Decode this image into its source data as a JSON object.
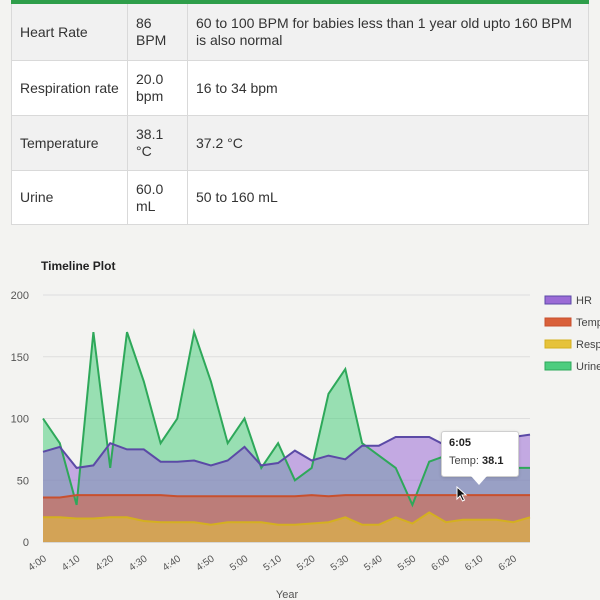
{
  "vitals": [
    {
      "name": "Heart Rate",
      "value": "86 BPM",
      "normal": "60 to 100 BPM for babies less than 1 year old upto 160 BPM is also normal"
    },
    {
      "name": "Respiration rate",
      "value": "20.0 bpm",
      "normal": "16 to 34 bpm"
    },
    {
      "name": "Temperature",
      "value": "38.1 °C",
      "normal": "37.2 °C"
    },
    {
      "name": "Urine",
      "value": "60.0 mL",
      "normal": "50 to 160 mL"
    }
  ],
  "chart_data": {
    "type": "area",
    "title": "Timeline Plot",
    "xlabel": "Year",
    "ylabel": "",
    "ylim": [
      0,
      200
    ],
    "y_ticks": [
      0,
      50,
      100,
      150,
      200
    ],
    "grid": true,
    "legend_position": "right",
    "x": [
      "4:00",
      "4:05",
      "4:10",
      "4:15",
      "4:20",
      "4:25",
      "4:30",
      "4:35",
      "4:40",
      "4:45",
      "4:50",
      "4:55",
      "5:00",
      "5:05",
      "5:10",
      "5:15",
      "5:20",
      "5:25",
      "5:30",
      "5:35",
      "5:40",
      "5:45",
      "5:50",
      "5:55",
      "6:00",
      "6:05",
      "6:10",
      "6:15",
      "6:20",
      "6:25"
    ],
    "x_tick_labels": [
      "4:00",
      "4:10",
      "4:20",
      "4:30",
      "4:40",
      "4:50",
      "5:00",
      "5:10",
      "5:20",
      "5:30",
      "5:40",
      "5:50",
      "6:00",
      "6:10",
      "6:20"
    ],
    "series": [
      {
        "name": "HR",
        "color": "#9b6bd6",
        "line_color": "#5b4aa6",
        "values": [
          73,
          77,
          60,
          62,
          80,
          75,
          75,
          65,
          65,
          66,
          62,
          66,
          77,
          62,
          64,
          74,
          66,
          70,
          67,
          78,
          78,
          85,
          85,
          85,
          78,
          85,
          85,
          85,
          85,
          87
        ]
      },
      {
        "name": "Temp",
        "color": "#d9603a",
        "line_color": "#c8502e",
        "values": [
          36,
          36,
          38,
          38,
          38,
          38,
          38,
          38,
          37,
          37,
          37,
          37,
          37,
          37,
          37,
          37,
          38,
          37,
          38,
          38,
          38,
          38,
          38,
          38,
          38,
          38,
          38,
          38,
          38,
          38
        ]
      },
      {
        "name": "Resp",
        "color": "#e6c23a",
        "line_color": "#d4b020",
        "values": [
          20,
          20,
          19,
          19,
          20,
          20,
          17,
          16,
          16,
          16,
          14,
          16,
          16,
          16,
          14,
          14,
          15,
          16,
          20,
          14,
          14,
          20,
          15,
          24,
          16,
          18,
          18,
          18,
          16,
          20
        ]
      },
      {
        "name": "Urine",
        "color": "#4ccd7e",
        "line_color": "#2ea85a",
        "values": [
          100,
          80,
          30,
          170,
          60,
          170,
          130,
          80,
          100,
          170,
          130,
          80,
          100,
          60,
          80,
          50,
          60,
          120,
          140,
          80,
          70,
          60,
          30,
          65,
          70,
          60,
          60,
          60,
          60,
          60
        ]
      }
    ]
  },
  "tooltip": {
    "time": "6:05",
    "label": "Temp:",
    "value": "38.1"
  }
}
